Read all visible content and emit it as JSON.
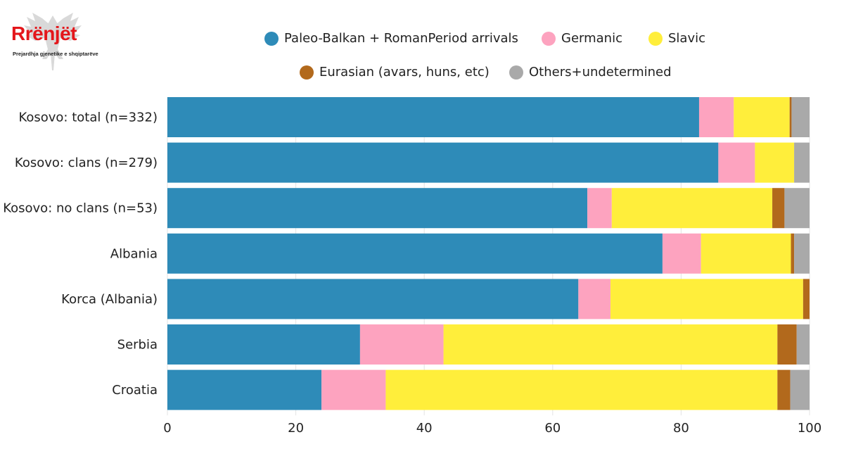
{
  "logo": {
    "brand": "Rrënjët",
    "tagline": "Prejardhja gjenetike e shqiptarëve",
    "icon": "eagle-emblem-icon"
  },
  "colors": {
    "Paleo-Balkan + RomanPeriod arrivals": "#2e8bb8",
    "Germanic": "#fda3bf",
    "Slavic": "#ffee3b",
    "Eurasian (avars, huns, etc)": "#b2691c",
    "Others+undetermined": "#a9a9a9"
  },
  "chart_data": {
    "type": "bar",
    "orientation": "horizontal",
    "stacked": true,
    "categories": [
      "Kosovo: total (n=332)",
      "Kosovo: clans (n=279)",
      "Kosovo: no clans (n=53)",
      "Albania",
      "Korca (Albania)",
      "Serbia",
      "Croatia"
    ],
    "series": [
      {
        "name": "Paleo-Balkan + RomanPeriod arrivals",
        "values": [
          82.8,
          85.8,
          65.4,
          77.1,
          64.0,
          30.0,
          24.0
        ]
      },
      {
        "name": "Germanic",
        "values": [
          5.4,
          5.7,
          3.8,
          6.0,
          5.0,
          13.0,
          10.0
        ]
      },
      {
        "name": "Slavic",
        "values": [
          8.7,
          6.1,
          25.0,
          14.0,
          30.0,
          52.0,
          61.0
        ]
      },
      {
        "name": "Eurasian (avars, huns, etc)",
        "values": [
          0.3,
          0.0,
          1.9,
          0.5,
          1.0,
          3.0,
          2.0
        ]
      },
      {
        "name": "Others+undetermined",
        "values": [
          2.8,
          2.4,
          3.9,
          2.4,
          0.0,
          2.0,
          3.0
        ]
      }
    ],
    "xlim": [
      0,
      100
    ],
    "xticks": [
      "0",
      "20",
      "40",
      "60",
      "80",
      "100"
    ],
    "grid": true,
    "legend_position": "top"
  }
}
